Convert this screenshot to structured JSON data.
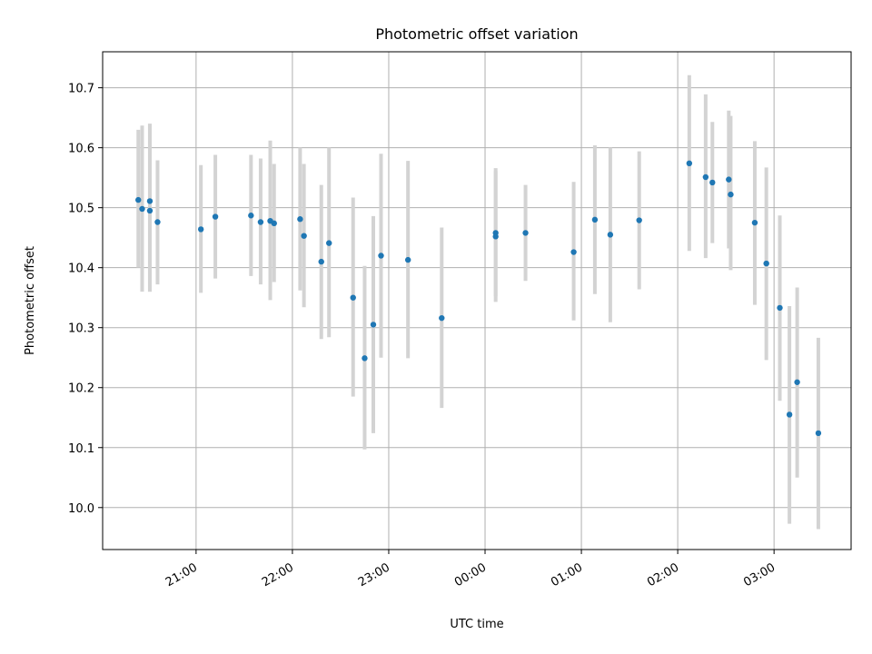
{
  "chart_data": {
    "type": "scatter",
    "title": "Photometric offset variation",
    "xlabel": "UTC time",
    "ylabel": "Photometric offset",
    "x_axis": {
      "unit": "hours relative to 00:00 UTC",
      "range": [
        -3.97,
        3.8
      ],
      "ticks": [
        -3,
        -2,
        -1,
        0,
        1,
        2,
        3
      ],
      "tick_labels": [
        "21:00",
        "22:00",
        "23:00",
        "00:00",
        "01:00",
        "02:00",
        "03:00"
      ]
    },
    "y_axis": {
      "range": [
        9.93,
        10.76
      ],
      "ticks": [
        10.0,
        10.1,
        10.2,
        10.3,
        10.4,
        10.5,
        10.6,
        10.7
      ],
      "tick_labels": [
        "10.0",
        "10.1",
        "10.2",
        "10.3",
        "10.4",
        "10.5",
        "10.6",
        "10.7"
      ]
    },
    "grid": true,
    "colors": {
      "points": "#1f77b4",
      "error_bars": "#d3d3d3",
      "grid": "#b0b0b0"
    },
    "points": [
      {
        "x": -3.6,
        "y": 10.513,
        "low": 10.4,
        "high": 10.63
      },
      {
        "x": -3.56,
        "y": 10.498,
        "low": 10.36,
        "high": 10.637
      },
      {
        "x": -3.48,
        "y": 10.511,
        "low": 10.36,
        "high": 10.64
      },
      {
        "x": -3.48,
        "y": 10.495,
        "low": 10.36,
        "high": 10.64
      },
      {
        "x": -3.4,
        "y": 10.476,
        "low": 10.372,
        "high": 10.579
      },
      {
        "x": -2.95,
        "y": 10.464,
        "low": 10.358,
        "high": 10.571
      },
      {
        "x": -2.8,
        "y": 10.485,
        "low": 10.382,
        "high": 10.588
      },
      {
        "x": -2.43,
        "y": 10.487,
        "low": 10.386,
        "high": 10.588
      },
      {
        "x": -2.33,
        "y": 10.476,
        "low": 10.372,
        "high": 10.582
      },
      {
        "x": -2.23,
        "y": 10.478,
        "low": 10.346,
        "high": 10.612
      },
      {
        "x": -2.19,
        "y": 10.474,
        "low": 10.376,
        "high": 10.573
      },
      {
        "x": -1.92,
        "y": 10.481,
        "low": 10.362,
        "high": 10.6
      },
      {
        "x": -1.88,
        "y": 10.453,
        "low": 10.334,
        "high": 10.573
      },
      {
        "x": -1.7,
        "y": 10.41,
        "low": 10.281,
        "high": 10.538
      },
      {
        "x": -1.62,
        "y": 10.441,
        "low": 10.284,
        "high": 10.6
      },
      {
        "x": -1.37,
        "y": 10.35,
        "low": 10.185,
        "high": 10.517
      },
      {
        "x": -1.25,
        "y": 10.249,
        "low": 10.097,
        "high": 10.403
      },
      {
        "x": -1.16,
        "y": 10.305,
        "low": 10.124,
        "high": 10.486
      },
      {
        "x": -1.08,
        "y": 10.42,
        "low": 10.25,
        "high": 10.59
      },
      {
        "x": -0.8,
        "y": 10.413,
        "low": 10.249,
        "high": 10.578
      },
      {
        "x": -0.45,
        "y": 10.316,
        "low": 10.166,
        "high": 10.467
      },
      {
        "x": 0.11,
        "y": 10.458,
        "low": 10.352,
        "high": 10.566
      },
      {
        "x": 0.11,
        "y": 10.452,
        "low": 10.343,
        "high": 10.561
      },
      {
        "x": 0.42,
        "y": 10.458,
        "low": 10.378,
        "high": 10.538
      },
      {
        "x": 0.92,
        "y": 10.426,
        "low": 10.312,
        "high": 10.543
      },
      {
        "x": 1.14,
        "y": 10.48,
        "low": 10.356,
        "high": 10.604
      },
      {
        "x": 1.3,
        "y": 10.455,
        "low": 10.309,
        "high": 10.6
      },
      {
        "x": 1.6,
        "y": 10.479,
        "low": 10.364,
        "high": 10.594
      },
      {
        "x": 2.12,
        "y": 10.574,
        "low": 10.428,
        "high": 10.721
      },
      {
        "x": 2.29,
        "y": 10.551,
        "low": 10.416,
        "high": 10.689
      },
      {
        "x": 2.36,
        "y": 10.542,
        "low": 10.441,
        "high": 10.643
      },
      {
        "x": 2.53,
        "y": 10.547,
        "low": 10.432,
        "high": 10.662
      },
      {
        "x": 2.55,
        "y": 10.522,
        "low": 10.396,
        "high": 10.653
      },
      {
        "x": 2.8,
        "y": 10.475,
        "low": 10.338,
        "high": 10.611
      },
      {
        "x": 2.92,
        "y": 10.407,
        "low": 10.246,
        "high": 10.567
      },
      {
        "x": 3.06,
        "y": 10.333,
        "low": 10.178,
        "high": 10.487
      },
      {
        "x": 3.16,
        "y": 10.155,
        "low": 9.973,
        "high": 10.336
      },
      {
        "x": 3.24,
        "y": 10.209,
        "low": 10.05,
        "high": 10.367
      },
      {
        "x": 3.46,
        "y": 10.124,
        "low": 9.964,
        "high": 10.283
      }
    ]
  }
}
